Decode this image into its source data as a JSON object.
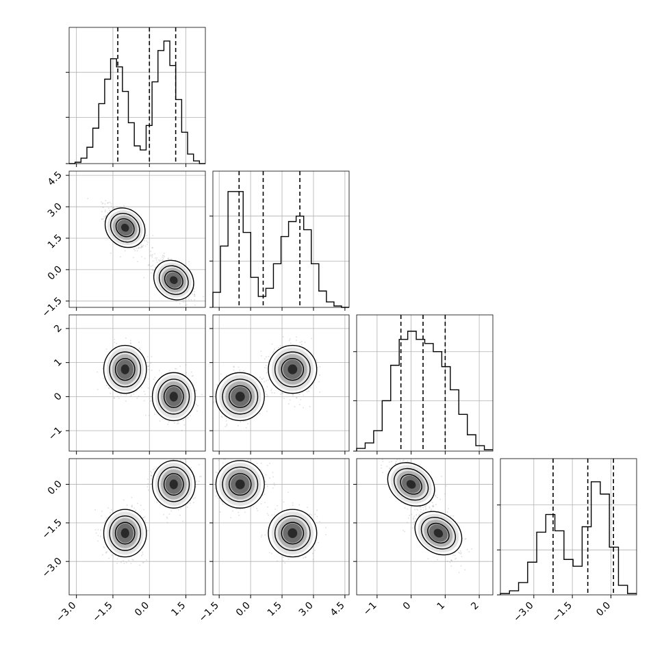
{
  "chart_data": {
    "type": "corner",
    "title": "",
    "parameters": [
      "",
      "",
      "",
      ""
    ],
    "ranges": [
      [
        -3.3,
        2.3
      ],
      [
        -1.8,
        4.7
      ],
      [
        -1.6,
        2.4
      ],
      [
        -4.3,
        1.0
      ]
    ],
    "ticks": [
      [
        -3.0,
        -1.5,
        0.0,
        1.5
      ],
      [
        -1.5,
        0.0,
        1.5,
        3.0,
        4.5
      ],
      [
        -1,
        0,
        1,
        2
      ],
      [
        -3.0,
        -1.5,
        0.0
      ]
    ],
    "tick_labels": [
      [
        "−3.0",
        "−1.5",
        "0.0",
        "1.5"
      ],
      [
        "−1.5",
        "0.0",
        "1.5",
        "3.0",
        "4.5"
      ],
      [
        "−1",
        "0",
        "1",
        "2"
      ],
      [
        "−3.0",
        "−1.5",
        "0.0"
      ]
    ],
    "diag_ticks": [
      [
        0,
        0.34,
        0.67
      ],
      [
        0,
        0.34,
        0.67
      ],
      [
        0,
        0.37,
        0.73
      ],
      [
        0,
        0.33,
        0.66
      ]
    ],
    "histograms": [
      [
        0,
        0.01,
        0.04,
        0.12,
        0.26,
        0.44,
        0.62,
        0.77,
        0.71,
        0.53,
        0.3,
        0.13,
        0.1,
        0.28,
        0.6,
        0.83,
        0.9,
        0.72,
        0.47,
        0.23,
        0.07,
        0.02,
        0
      ],
      [
        0.11,
        0.45,
        0.85,
        0.85,
        0.55,
        0.22,
        0.08,
        0.14,
        0.32,
        0.52,
        0.63,
        0.67,
        0.57,
        0.32,
        0.12,
        0.04,
        0.01,
        0
      ],
      [
        0.02,
        0.06,
        0.15,
        0.37,
        0.63,
        0.82,
        0.88,
        0.82,
        0.79,
        0.73,
        0.62,
        0.45,
        0.27,
        0.12,
        0.04,
        0.01
      ],
      [
        0.01,
        0.03,
        0.09,
        0.24,
        0.46,
        0.59,
        0.47,
        0.26,
        0.21,
        0.5,
        0.83,
        0.74,
        0.35,
        0.07,
        0.01
      ]
    ],
    "quantile_lines": [
      [
        -1.3,
        0.0,
        1.08
      ],
      [
        -0.55,
        0.6,
        2.35
      ],
      [
        -0.3,
        0.35,
        1.0
      ],
      [
        -2.25,
        -0.9,
        0.1
      ]
    ],
    "modes": [
      {
        "weight": 0.5,
        "mean": [
          -1.0,
          2.0,
          0.8,
          -1.9
        ]
      },
      {
        "weight": 0.5,
        "mean": [
          1.0,
          -0.5,
          0.0,
          0.0
        ]
      }
    ],
    "mode_spread": [
      0.38,
      0.5,
      0.32,
      0.42
    ],
    "cells": [
      {
        "row": 1,
        "col": 0,
        "corr": -0.6
      },
      {
        "row": 2,
        "col": 0,
        "corr": 0.0
      },
      {
        "row": 2,
        "col": 1,
        "corr": 0.0
      },
      {
        "row": 3,
        "col": 0,
        "corr": 0.0
      },
      {
        "row": 3,
        "col": 1,
        "corr": 0.0
      },
      {
        "row": 3,
        "col": 2,
        "corr": -0.5
      }
    ],
    "contour_levels": [
      1.0,
      1.6,
      2.2
    ],
    "grid": true,
    "colors": {
      "points": "#8a8a8a",
      "lines": "#000000",
      "grid": "#b0b0b0",
      "density": "#000000"
    }
  }
}
